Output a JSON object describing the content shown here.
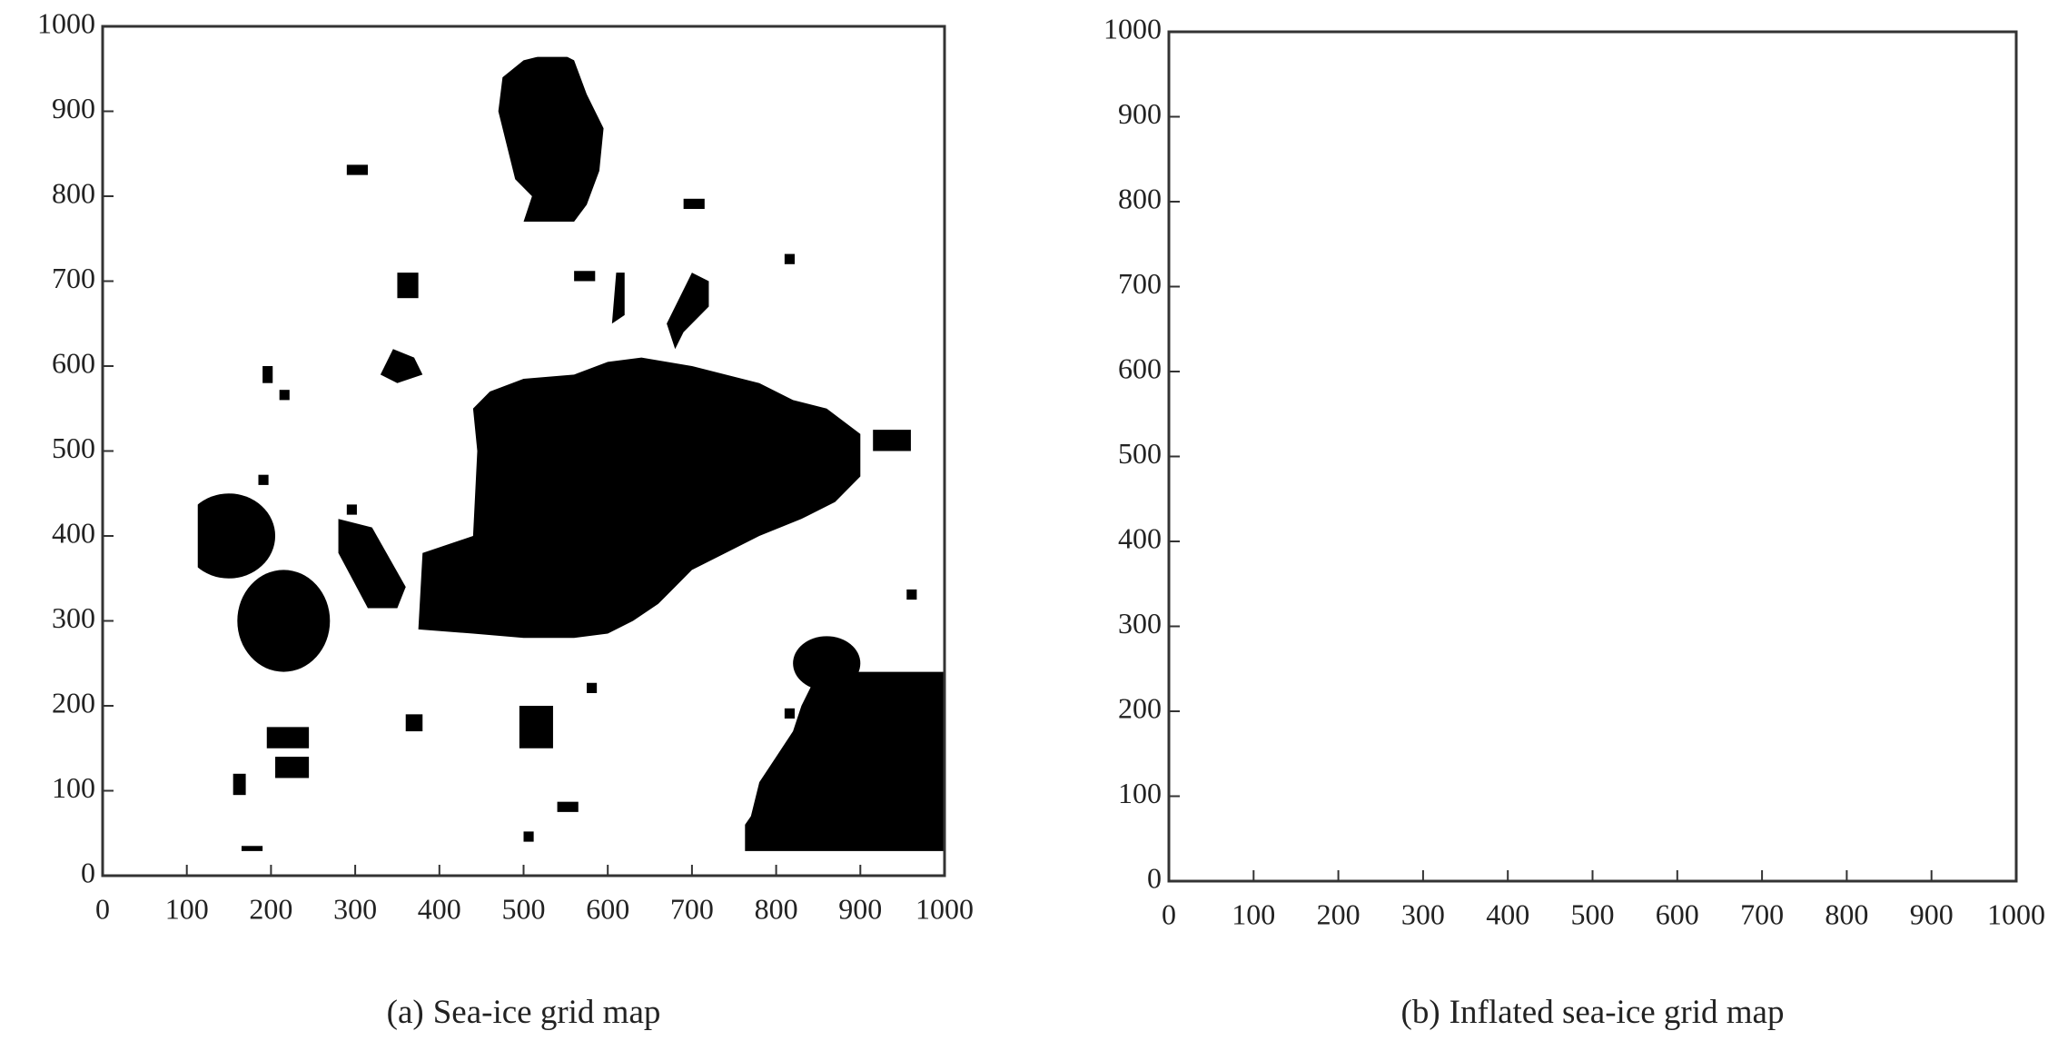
{
  "chart_data": [
    {
      "type": "grid-map",
      "label": "(a)",
      "title": "Sea-ice grid map",
      "xlim": [
        0,
        1000
      ],
      "ylim": [
        0,
        1000
      ],
      "xticks": [
        0,
        100,
        200,
        300,
        400,
        500,
        600,
        700,
        800,
        900,
        1000
      ],
      "yticks": [
        0,
        100,
        200,
        300,
        400,
        500,
        600,
        700,
        800,
        900,
        1000
      ],
      "obstacle_color": "#000000"
    },
    {
      "type": "grid-map",
      "label": "(b)",
      "title": "Inflated sea-ice grid map",
      "xlim": [
        0,
        1000
      ],
      "ylim": [
        0,
        1000
      ],
      "xticks": [
        0,
        100,
        200,
        300,
        400,
        500,
        600,
        700,
        800,
        900,
        1000
      ],
      "yticks": [
        0,
        100,
        200,
        300,
        400,
        500,
        600,
        700,
        800,
        900,
        1000
      ],
      "obstacle_color": "#000000",
      "outline_color": "#ff0000"
    }
  ]
}
